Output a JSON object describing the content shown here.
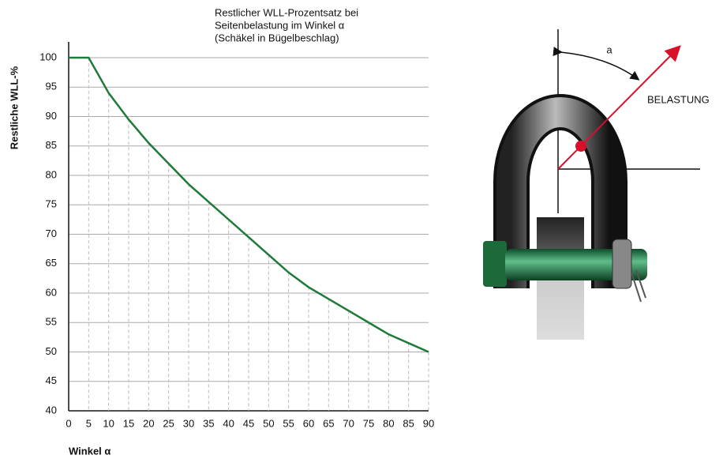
{
  "chart_data": {
    "type": "line",
    "title": [
      "Restlicher WLL-Prozentsatz bei",
      "Seitenbelastung im Winkel α",
      "(Schäkel in Bügelbeschlag)"
    ],
    "ylabel": "Restliche WLL-%",
    "xlabel": "Winkel α",
    "x": [
      0,
      5,
      10,
      15,
      20,
      25,
      30,
      35,
      40,
      45,
      50,
      55,
      60,
      65,
      70,
      75,
      80,
      85,
      90
    ],
    "series": [
      {
        "color": "#1f7a3a",
        "values": [
          100,
          100,
          94,
          89.5,
          85.5,
          82,
          78.5,
          75.5,
          72.5,
          69.5,
          66.5,
          63.5,
          61,
          59,
          57,
          55,
          53,
          51.5,
          50
        ]
      }
    ],
    "xlim": [
      0,
      90
    ],
    "xticks": [
      0,
      5,
      10,
      15,
      20,
      25,
      30,
      35,
      40,
      45,
      50,
      55,
      60,
      65,
      70,
      75,
      80,
      85,
      90
    ],
    "ylim": [
      40,
      100
    ],
    "yticks": [
      40,
      45,
      50,
      55,
      60,
      65,
      70,
      75,
      80,
      85,
      90,
      95,
      100
    ],
    "grid": true
  },
  "illustration": {
    "angle_label": "a",
    "load_label": "BELASTUNG"
  }
}
